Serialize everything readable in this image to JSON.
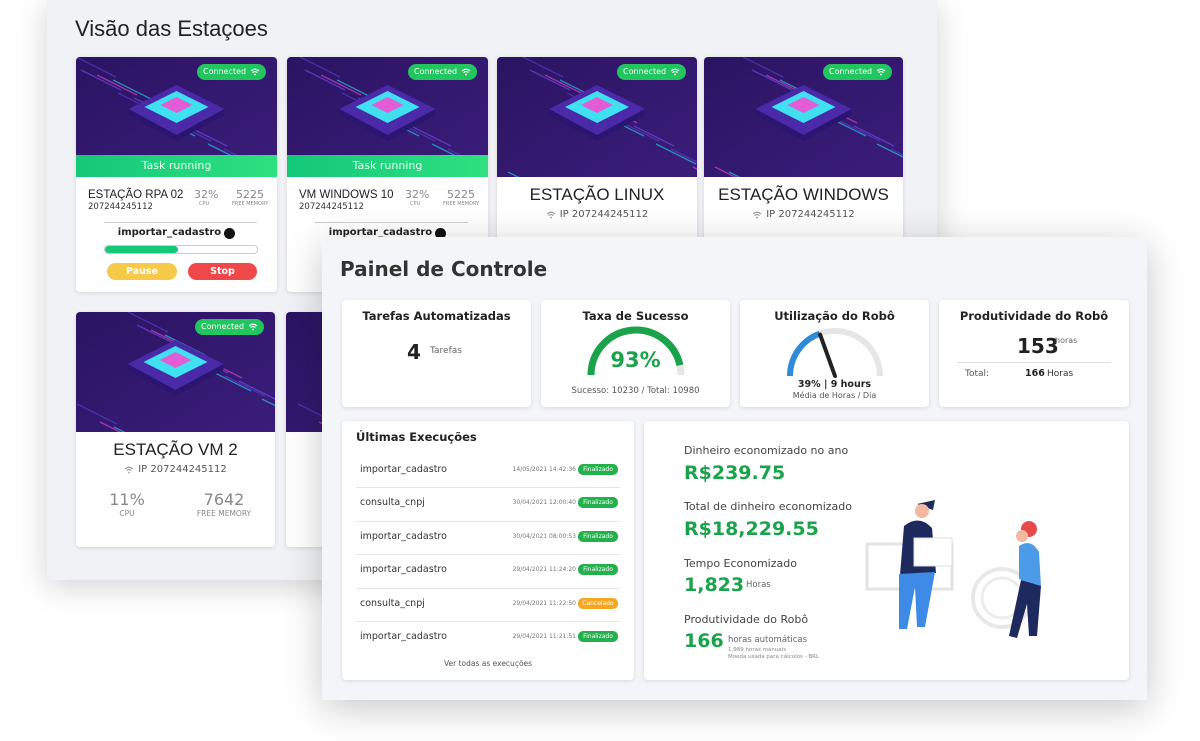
{
  "stations_panel": {
    "title": "Visão das Estaçoes",
    "stations": [
      {
        "status": "Connected",
        "task": "Task running",
        "name": "ESTAÇÃO RPA 02",
        "id": "207244245112",
        "cpu": "32%",
        "cpu_label": "CPU",
        "memory": "5225",
        "memory_label": "FREE MEMORY",
        "process": "importar_cadastro",
        "progress": 48,
        "pause": "Pause",
        "stop": "Stop"
      },
      {
        "status": "Connected",
        "task": "Task running",
        "name": "VM WINDOWS 10",
        "id": "207244245112",
        "cpu": "32%",
        "cpu_label": "CPU",
        "memory": "5225",
        "memory_label": "FREE MEMORY",
        "process": "importar_cadastro"
      },
      {
        "status": "Connected",
        "name": "ESTAÇÃO LINUX",
        "ip": "IP 207244245112"
      },
      {
        "status": "Connected",
        "name": "ESTAÇÃO WINDOWS",
        "ip": "IP 207244245112"
      },
      {
        "status": "Connected",
        "name": "ESTAÇÃO VM 2",
        "ip": "IP 207244245112",
        "cpu": "11%",
        "cpu_label": "CPU",
        "memory": "7642",
        "memory_label": "FREE MEMORY"
      }
    ]
  },
  "control_panel": {
    "title": "Painel de Controle",
    "tasks": {
      "title": "Tarefas Automatizadas",
      "value": "4",
      "unit": "Tarefas"
    },
    "success": {
      "title": "Taxa de Sucesso",
      "value": 93,
      "value_label": "93%",
      "detail": "Sucesso: 10230 / Total: 10980"
    },
    "utilization": {
      "title": "Utilização do Robô",
      "value": 39,
      "value_label": "39% | 9 hours",
      "detail": "Média de Horas / Dia"
    },
    "productivity": {
      "title": "Produtividade do Robô",
      "value": "153",
      "unit": "horas",
      "total_label": "Total:",
      "total": "166",
      "total_unit": "Horas"
    },
    "executions": {
      "title": "Últimas Execuções",
      "rows": [
        {
          "name": "importar_cadastro",
          "date": "14/05/2021 14:42:36",
          "status": "Finalizado",
          "color": "#22b14c"
        },
        {
          "name": "consulta_cnpj",
          "date": "30/04/2021 12:00:40",
          "status": "Finalizado",
          "color": "#22b14c"
        },
        {
          "name": "importar_cadastro",
          "date": "30/04/2021 08:00:53",
          "status": "Finalizado",
          "color": "#22b14c"
        },
        {
          "name": "importar_cadastro",
          "date": "29/04/2021 11:24:20",
          "status": "Finalizado",
          "color": "#22b14c"
        },
        {
          "name": "consulta_cnpj",
          "date": "29/04/2021 11:22:50",
          "status": "Cancelado",
          "color": "#f5a623"
        },
        {
          "name": "importar_cadastro",
          "date": "29/04/2021 11:21:51",
          "status": "Finalizado",
          "color": "#22b14c"
        }
      ],
      "footer": "Ver todas as execuções"
    },
    "savings": {
      "year_label": "Dinheiro economizado no ano",
      "year_value": "R$239.75",
      "total_label": "Total de dinheiro economizado",
      "total_value": "R$18,229.55",
      "time_label": "Tempo Economizado",
      "time_value": "1,823",
      "time_unit": "Horas",
      "prod_label": "Produtividade do Robô",
      "prod_value": "166",
      "prod_unit": "horas automáticas",
      "manual_note": "1,989 horas manuais",
      "currency_note": "Moeda usada para cálculos - BRL"
    }
  }
}
